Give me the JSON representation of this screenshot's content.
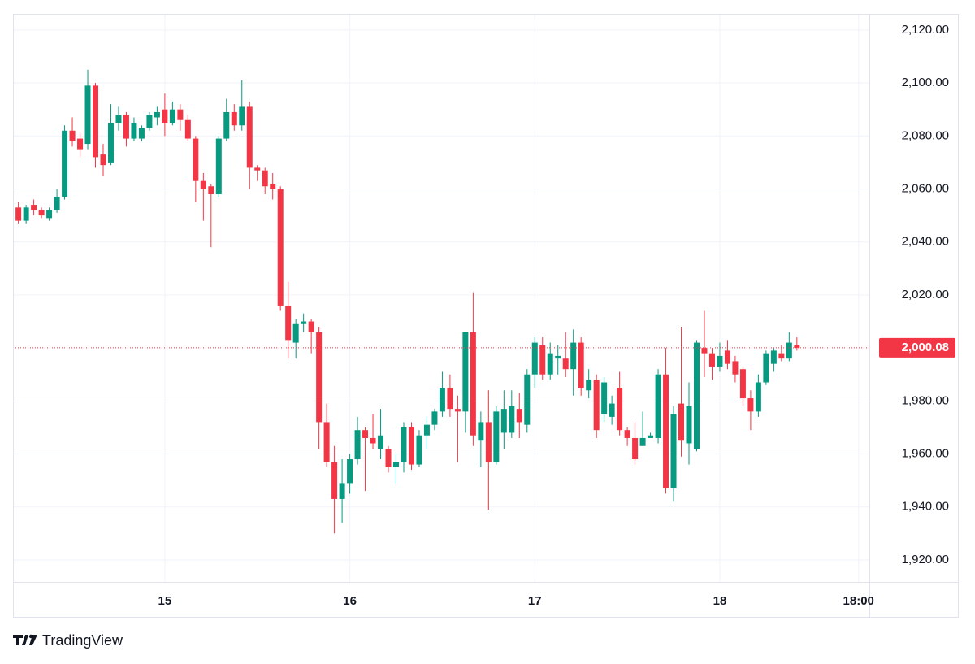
{
  "chart_data": {
    "type": "candlestick",
    "watermark": "TradingView",
    "up_color": "#089981",
    "down_color": "#f23645",
    "grid": true,
    "x": [
      -19,
      -18,
      -17,
      -16,
      -15,
      -14,
      -13,
      -12,
      -11,
      -10,
      -9,
      -8,
      -7,
      -6,
      -5,
      -4,
      -3,
      -2,
      -1,
      0,
      1,
      2,
      3,
      4,
      5,
      6,
      7,
      8,
      9,
      10,
      11,
      12,
      13,
      14,
      15,
      16,
      17,
      18,
      19,
      20,
      21,
      22,
      23,
      24,
      25,
      26,
      27,
      28,
      29,
      30,
      31,
      32,
      33,
      34,
      35,
      36,
      37,
      38,
      39,
      40,
      41,
      42,
      43,
      44,
      45,
      46,
      47,
      48,
      49,
      50,
      51,
      52,
      53,
      54,
      55,
      56,
      57,
      58,
      59,
      60,
      61,
      62,
      63,
      64,
      65,
      66,
      67,
      68,
      69,
      70,
      71,
      72,
      73,
      74,
      75,
      76,
      77,
      78,
      79,
      80,
      81,
      82
    ],
    "open": [
      2053,
      2048,
      2054,
      2052,
      2049,
      2052,
      2057,
      2082,
      2079,
      2077,
      2099,
      2073,
      2070,
      2085,
      2088,
      2079,
      2079,
      2083,
      2087,
      2090,
      2085,
      2090,
      2086,
      2079,
      2063,
      2061,
      2058,
      2079,
      2089,
      2084,
      2091,
      2068,
      2067,
      2062,
      2060,
      2016,
      2002,
      2009,
      2010,
      2006,
      1972,
      1957,
      1943,
      1949,
      1958,
      1969,
      1966,
      1962,
      1962,
      1955,
      1957,
      1970,
      1956,
      1967,
      1971,
      1976,
      1985,
      1977,
      1976,
      2006,
      1965,
      1972,
      1957,
      1968,
      1968,
      1977,
      1971,
      1990,
      2001,
      1990,
      1996,
      1996,
      1992,
      2002,
      1984,
      1988,
      1975,
      1974,
      1985,
      1969,
      1966,
      1963,
      1966,
      1966,
      1990,
      1947,
      1979,
      1964,
      1962,
      2000,
      1998,
      1993,
      1999,
      1995,
      1992,
      1981,
      1976,
      1987,
      1994,
      1998,
      1996,
      2001
    ],
    "high": [
      2055,
      2054,
      2056,
      2053,
      2053,
      2060,
      2084,
      2087,
      2081,
      2105,
      2100,
      2077,
      2092,
      2091,
      2089,
      2087,
      2084,
      2089,
      2091,
      2096,
      2093,
      2092,
      2088,
      2080,
      2066,
      2062,
      2080,
      2094,
      2092,
      2101,
      2093,
      2069,
      2068,
      2066,
      2061,
      2025,
      2011,
      2013,
      2011,
      2008,
      1979,
      1963,
      1958,
      1960,
      1974,
      1970,
      1975,
      1977,
      1963,
      1960,
      1972,
      1972,
      1969,
      1974,
      1977,
      1991,
      1990,
      1982,
      2006,
      2021,
      1976,
      1984,
      1978,
      1984,
      1984,
      1983,
      1992,
      2004,
      2004,
      2002,
      2001,
      2006,
      2007,
      2004,
      1992,
      1990,
      1989,
      1982,
      1991,
      1970,
      1972,
      1976,
      1968,
      1992,
      2000,
      1978,
      2008,
      1987,
      2003,
      2014,
      2000,
      2002,
      2003,
      1997,
      1993,
      1984,
      1990,
      1999,
      2000,
      2001,
      2006,
      2004
    ],
    "low": [
      2047,
      2047,
      2050,
      2049,
      2048,
      2051,
      2056,
      2076,
      2072,
      2075,
      2068,
      2065,
      2069,
      2082,
      2076,
      2078,
      2078,
      2082,
      2084,
      2080,
      2084,
      2082,
      2078,
      2055,
      2048,
      2038,
      2057,
      2078,
      2082,
      2082,
      2060,
      2063,
      2058,
      2056,
      2014,
      1996,
      1996,
      2006,
      1998,
      1962,
      1955,
      1930,
      1934,
      1945,
      1956,
      1946,
      1962,
      1958,
      1953,
      1949,
      1953,
      1954,
      1955,
      1962,
      1969,
      1974,
      1974,
      1957,
      1968,
      1963,
      1955,
      1939,
      1956,
      1962,
      1966,
      1966,
      1968,
      1985,
      1988,
      1988,
      1990,
      1989,
      1982,
      1982,
      1981,
      1966,
      1972,
      1971,
      1967,
      1963,
      1956,
      1963,
      1966,
      1964,
      1945,
      1942,
      1959,
      1956,
      1961,
      1989,
      1988,
      1991,
      1992,
      1987,
      1978,
      1969,
      1974,
      1986,
      1991,
      1995,
      1995,
      1999
    ],
    "close": [
      2048,
      2053,
      2052,
      2050,
      2052,
      2057,
      2082,
      2078,
      2075,
      2099,
      2072,
      2069,
      2085,
      2088,
      2079,
      2085,
      2083,
      2088,
      2089,
      2085,
      2090,
      2086,
      2079,
      2063,
      2060,
      2058,
      2079,
      2089,
      2084,
      2091,
      2068,
      2067,
      2061,
      2060,
      2016,
      2003,
      2009,
      2010,
      2006,
      1972,
      1957,
      1943,
      1949,
      1958,
      1969,
      1966,
      1964,
      1967,
      1955,
      1957,
      1970,
      1956,
      1967,
      1971,
      1976,
      1985,
      1977,
      1976,
      2006,
      1967,
      1972,
      1957,
      1976,
      1977,
      1978,
      1972,
      1990,
      2002,
      1990,
      1998,
      1997,
      1992,
      2002,
      1985,
      1988,
      1969,
      1987,
      1979,
      1969,
      1966,
      1958,
      1966,
      1967,
      1990,
      1947,
      1975,
      1965,
      1978,
      2002,
      1998,
      1993,
      1997,
      1994,
      1990,
      1981,
      1976,
      1987,
      1998,
      1999,
      1996,
      2002,
      2000.08
    ],
    "last_price": {
      "value": 2000.08,
      "label": "2,000.08"
    },
    "xlim": [
      -19.7,
      91.4
    ],
    "xticks": [
      {
        "value": 0,
        "label": "15"
      },
      {
        "value": 24,
        "label": "16"
      },
      {
        "value": 48,
        "label": "17"
      },
      {
        "value": 72,
        "label": "18"
      },
      {
        "value": 90,
        "label": "18:00"
      }
    ],
    "ylim": [
      1911.7,
      2126.1
    ],
    "yticks": [
      {
        "value": 1920,
        "label": "1,920.00"
      },
      {
        "value": 1940,
        "label": "1,940.00"
      },
      {
        "value": 1960,
        "label": "1,960.00"
      },
      {
        "value": 1980,
        "label": "1,980.00"
      },
      {
        "value": 2020,
        "label": "2,020.00"
      },
      {
        "value": 2040,
        "label": "2,040.00"
      },
      {
        "value": 2060,
        "label": "2,060.00"
      },
      {
        "value": 2080,
        "label": "2,080.00"
      },
      {
        "value": 2100,
        "label": "2,100.00"
      },
      {
        "value": 2120,
        "label": "2,120.00"
      }
    ]
  }
}
